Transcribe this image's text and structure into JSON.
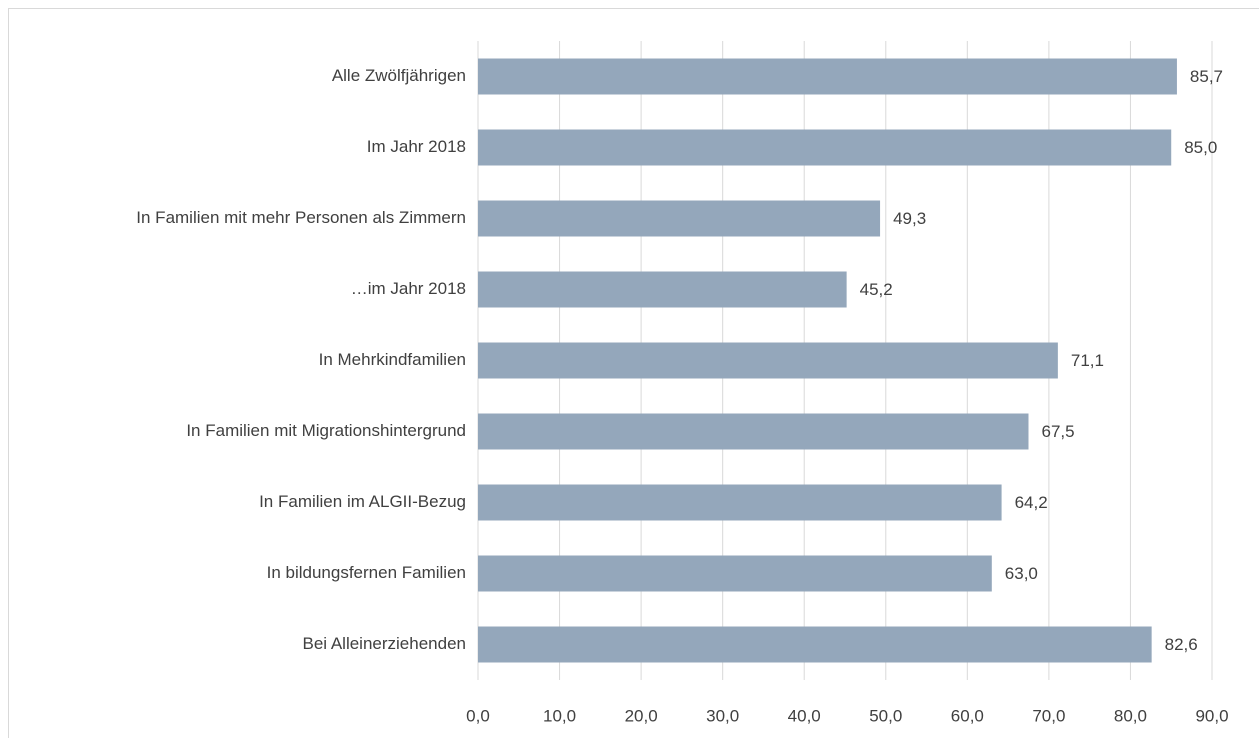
{
  "chart_data": {
    "type": "bar",
    "orientation": "horizontal",
    "categories": [
      "Alle Zwölfjährigen",
      "Im Jahr 2018",
      "In  Familien mit mehr Personen als Zimmern",
      "…im Jahr 2018",
      "In Mehrkindfamilien",
      "In Familien mit Migrationshintergrund",
      "In Familien im ALGII-Bezug",
      "In bildungsfernen Familien",
      "Bei Alleinerziehenden"
    ],
    "values": [
      85.7,
      85.0,
      49.3,
      45.2,
      71.1,
      67.5,
      64.2,
      63.0,
      82.6
    ],
    "value_labels": [
      "85,7",
      "85,0",
      "49,3",
      "45,2",
      "71,1",
      "67,5",
      "64,2",
      "63,0",
      "82,6"
    ],
    "color": "#94a7bb",
    "xlim": [
      0,
      90
    ],
    "xticks": [
      {
        "value": 0,
        "label": "0,0"
      },
      {
        "value": 10,
        "label": "10,0"
      },
      {
        "value": 20,
        "label": "20,0"
      },
      {
        "value": 30,
        "label": "30,0"
      },
      {
        "value": 40,
        "label": "40,0"
      },
      {
        "value": 50,
        "label": "50,0"
      },
      {
        "value": 60,
        "label": "60,0"
      },
      {
        "value": 70,
        "label": "70,0"
      },
      {
        "value": 80,
        "label": "80,0"
      },
      {
        "value": 90,
        "label": "90,0"
      }
    ],
    "grid": true
  }
}
